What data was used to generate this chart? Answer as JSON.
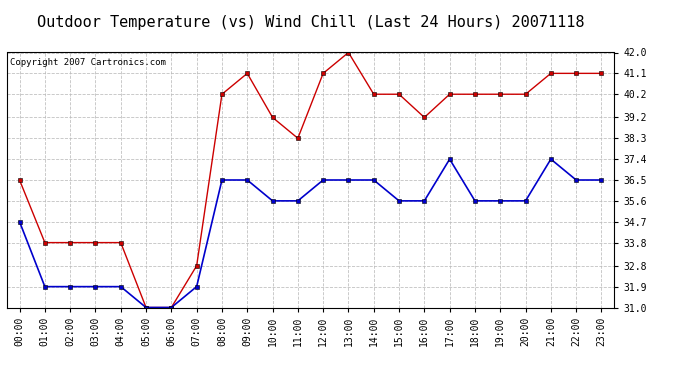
{
  "title": "Outdoor Temperature (vs) Wind Chill (Last 24 Hours) 20071118",
  "copyright": "Copyright 2007 Cartronics.com",
  "x_labels": [
    "00:00",
    "01:00",
    "02:00",
    "03:00",
    "04:00",
    "05:00",
    "06:00",
    "07:00",
    "08:00",
    "09:00",
    "10:00",
    "11:00",
    "12:00",
    "13:00",
    "14:00",
    "15:00",
    "16:00",
    "17:00",
    "18:00",
    "19:00",
    "20:00",
    "21:00",
    "22:00",
    "23:00"
  ],
  "red_data": [
    36.5,
    33.8,
    33.8,
    33.8,
    33.8,
    31.0,
    31.0,
    32.8,
    40.2,
    41.1,
    39.2,
    38.3,
    41.1,
    42.0,
    40.2,
    40.2,
    39.2,
    40.2,
    40.2,
    40.2,
    40.2,
    41.1,
    41.1,
    41.1
  ],
  "blue_data": [
    34.7,
    31.9,
    31.9,
    31.9,
    31.9,
    31.0,
    31.0,
    31.9,
    36.5,
    36.5,
    35.6,
    35.6,
    36.5,
    36.5,
    36.5,
    35.6,
    35.6,
    37.4,
    35.6,
    35.6,
    35.6,
    37.4,
    36.5,
    36.5
  ],
  "ylim": [
    31.0,
    42.0
  ],
  "yticks": [
    31.0,
    31.9,
    32.8,
    33.8,
    34.7,
    35.6,
    36.5,
    37.4,
    38.3,
    39.2,
    40.2,
    41.1,
    42.0
  ],
  "red_color": "#cc0000",
  "blue_color": "#0000cc",
  "bg_color": "#ffffff",
  "grid_color": "#bbbbbb",
  "title_fontsize": 11,
  "copyright_fontsize": 6.5,
  "tick_fontsize": 7.0
}
